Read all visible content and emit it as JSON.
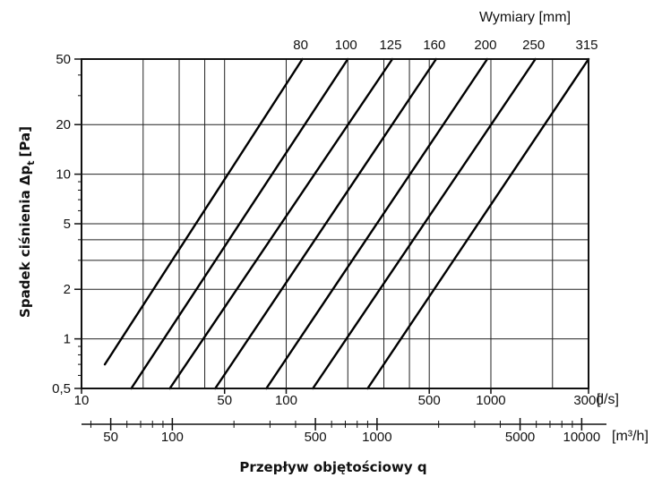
{
  "chart_data": {
    "type": "line",
    "xscale": "log",
    "yscale": "log",
    "top_title": "Wymiary [mm]",
    "ylabel": "Spadek ciśnienia Δp",
    "ylabel_sub": "t",
    "ylabel_unit": "[Pa]",
    "xlabel": "Przepływ objętościowy q",
    "xlim": [
      10,
      3000
    ],
    "ylim": [
      0.5,
      50
    ],
    "x_unit_ls": "[l/s]",
    "x_unit_m3h": "[m³/h]",
    "x_ticks_ls": [
      {
        "value": 10,
        "label": "10"
      },
      {
        "value": 50,
        "label": "50"
      },
      {
        "value": 100,
        "label": "100"
      },
      {
        "value": 500,
        "label": "500"
      },
      {
        "value": 1000,
        "label": "1000"
      },
      {
        "value": 3000,
        "label": "3000"
      }
    ],
    "x_ticks_m3h": [
      {
        "value": 50,
        "label": "50"
      },
      {
        "value": 100,
        "label": "100"
      },
      {
        "value": 500,
        "label": "500"
      },
      {
        "value": 1000,
        "label": "1000"
      },
      {
        "value": 5000,
        "label": "5000"
      },
      {
        "value": 10000,
        "label": "10000"
      }
    ],
    "y_ticks": [
      {
        "value": 0.5,
        "label": "0,5"
      },
      {
        "value": 1,
        "label": "1"
      },
      {
        "value": 2,
        "label": "2"
      },
      {
        "value": 5,
        "label": "5"
      },
      {
        "value": 10,
        "label": "10"
      },
      {
        "value": 20,
        "label": "20"
      },
      {
        "value": 50,
        "label": "50"
      }
    ],
    "grid_x": [
      20,
      30,
      40,
      50,
      100,
      200,
      300,
      400,
      500,
      1000,
      2000,
      3000
    ],
    "grid_y": [
      0.5,
      1,
      2,
      3,
      4,
      5,
      10,
      20,
      50
    ],
    "series": [
      {
        "name": "80",
        "points": [
          [
            13,
            0.7
          ],
          [
            120,
            50
          ]
        ]
      },
      {
        "name": "100",
        "points": [
          [
            17.5,
            0.5
          ],
          [
            200,
            50
          ]
        ]
      },
      {
        "name": "125",
        "points": [
          [
            27,
            0.5
          ],
          [
            330,
            50
          ]
        ]
      },
      {
        "name": "160",
        "points": [
          [
            45,
            0.5
          ],
          [
            540,
            50
          ]
        ]
      },
      {
        "name": "200",
        "points": [
          [
            80,
            0.5
          ],
          [
            960,
            50
          ]
        ]
      },
      {
        "name": "250",
        "points": [
          [
            135,
            0.5
          ],
          [
            1650,
            50
          ]
        ]
      },
      {
        "name": "315",
        "points": [
          [
            250,
            0.5
          ],
          [
            3000,
            50
          ]
        ]
      }
    ]
  }
}
